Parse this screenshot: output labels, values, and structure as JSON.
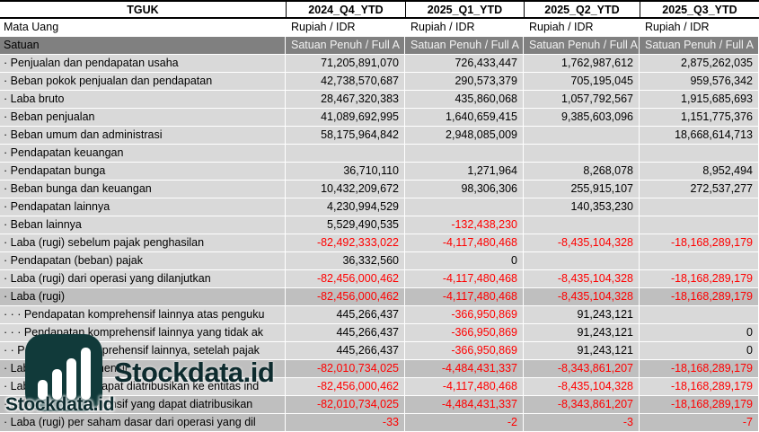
{
  "colors": {
    "negative_value": "#FF0000",
    "row_light": "#D9D9D9",
    "row_emphasis": "#BFBFBF",
    "row_unit": "#808080",
    "row_white": "#FFFFFF",
    "header_border": "#000000",
    "gridline": "#FFFFFF",
    "watermark_teal": "#113A3A",
    "watermark_text": "#0D2B2E"
  },
  "header": {
    "label": "TGUK",
    "columns": [
      "2024_Q4_YTD",
      "2025_Q1_YTD",
      "2025_Q2_YTD",
      "2025_Q3_YTD"
    ]
  },
  "table": {
    "rows": [
      {
        "label": "Mata Uang",
        "kind": "txt",
        "bg": "white",
        "values": [
          "Rupiah / IDR",
          "Rupiah / IDR",
          "Rupiah / IDR",
          "Rupiah / IDR"
        ]
      },
      {
        "label": "Satuan",
        "kind": "txt",
        "bg": "unit",
        "values": [
          "Satuan Penuh / Full A",
          "Satuan Penuh / Full A",
          "Satuan Penuh / Full A",
          "Satuan Penuh / Full A"
        ]
      },
      {
        "label": "· Penjualan dan pendapatan usaha",
        "kind": "num",
        "bg": "light",
        "values": [
          "71,205,891,070",
          "726,433,447",
          "1,762,987,612",
          "2,875,262,035"
        ]
      },
      {
        "label": "· Beban pokok penjualan dan pendapatan",
        "kind": "num",
        "bg": "light",
        "values": [
          "42,738,570,687",
          "290,573,379",
          "705,195,045",
          "959,576,342"
        ]
      },
      {
        "label": "· Laba bruto",
        "kind": "num",
        "bg": "light",
        "values": [
          "28,467,320,383",
          "435,860,068",
          "1,057,792,567",
          "1,915,685,693"
        ]
      },
      {
        "label": "· Beban penjualan",
        "kind": "num",
        "bg": "light",
        "values": [
          "41,089,692,995",
          "1,640,659,415",
          "9,385,603,096",
          "1,151,775,376"
        ]
      },
      {
        "label": "· Beban umum dan administrasi",
        "kind": "num",
        "bg": "light",
        "values": [
          "58,175,964,842",
          "2,948,085,009",
          "",
          "18,668,614,713"
        ]
      },
      {
        "label": "· Pendapatan keuangan",
        "kind": "num",
        "bg": "light",
        "values": [
          "",
          "",
          "",
          ""
        ]
      },
      {
        "label": "· Pendapatan bunga",
        "kind": "num",
        "bg": "light",
        "values": [
          "36,710,110",
          "1,271,964",
          "8,268,078",
          "8,952,494"
        ]
      },
      {
        "label": "· Beban bunga dan keuangan",
        "kind": "num",
        "bg": "light",
        "values": [
          "10,432,209,672",
          "98,306,306",
          "255,915,107",
          "272,537,277"
        ]
      },
      {
        "label": "· Pendapatan lainnya",
        "kind": "num",
        "bg": "light",
        "values": [
          "4,230,994,529",
          "",
          "140,353,230",
          ""
        ]
      },
      {
        "label": "· Beban lainnya",
        "kind": "num",
        "bg": "light",
        "values": [
          "5,529,490,535",
          "-132,438,230",
          "",
          ""
        ]
      },
      {
        "label": "· Laba (rugi) sebelum pajak penghasilan",
        "kind": "num",
        "bg": "light",
        "values": [
          "-82,492,333,022",
          "-4,117,480,468",
          "-8,435,104,328",
          "-18,168,289,179"
        ]
      },
      {
        "label": "· Pendapatan (beban) pajak",
        "kind": "num",
        "bg": "light",
        "values": [
          "36,332,560",
          "0",
          "",
          ""
        ]
      },
      {
        "label": "· Laba (rugi) dari operasi yang dilanjutkan",
        "kind": "num",
        "bg": "light",
        "values": [
          "-82,456,000,462",
          "-4,117,480,468",
          "-8,435,104,328",
          "-18,168,289,179"
        ]
      },
      {
        "label": "· Laba (rugi)",
        "kind": "num",
        "bg": "mid",
        "values": [
          "-82,456,000,462",
          "-4,117,480,468",
          "-8,435,104,328",
          "-18,168,289,179"
        ]
      },
      {
        "label": "· · · Pendapatan komprehensif lainnya atas penguku",
        "kind": "num",
        "bg": "light",
        "values": [
          "445,266,437",
          "-366,950,869",
          "91,243,121",
          ""
        ]
      },
      {
        "label": "· · · Pendapatan komprehensif lainnya yang tidak ak",
        "kind": "num",
        "bg": "light",
        "values": [
          "445,266,437",
          "-366,950,869",
          "91,243,121",
          "0"
        ]
      },
      {
        "label": "· · Pendapatan komprehensif lainnya, setelah pajak",
        "kind": "num",
        "bg": "light",
        "values": [
          "445,266,437",
          "-366,950,869",
          "91,243,121",
          "0"
        ]
      },
      {
        "label": "· Laba rugi komprehensif",
        "kind": "num",
        "bg": "mid",
        "values": [
          "-82,010,734,025",
          "-4,484,431,337",
          "-8,343,861,207",
          "-18,168,289,179"
        ]
      },
      {
        "label": "· Laba (rugi) yang dapat diatribusikan ke entitas ind",
        "kind": "num",
        "bg": "light",
        "values": [
          "-82,456,000,462",
          "-4,117,480,468",
          "-8,435,104,328",
          "-18,168,289,179"
        ]
      },
      {
        "label": "· Laba rugi komprehensif yang dapat diatribusikan",
        "kind": "num",
        "bg": "mid",
        "values": [
          "-82,010,734,025",
          "-4,484,431,337",
          "-8,343,861,207",
          "-18,168,289,179"
        ]
      },
      {
        "label": "· Laba (rugi) per saham dasar dari operasi yang dil",
        "kind": "num",
        "bg": "mid",
        "values": [
          "-33",
          "-2",
          "-3",
          "-7"
        ]
      }
    ]
  },
  "watermark": {
    "brand_large": "Stockdata.id",
    "brand_small": "Stockdata.id"
  }
}
